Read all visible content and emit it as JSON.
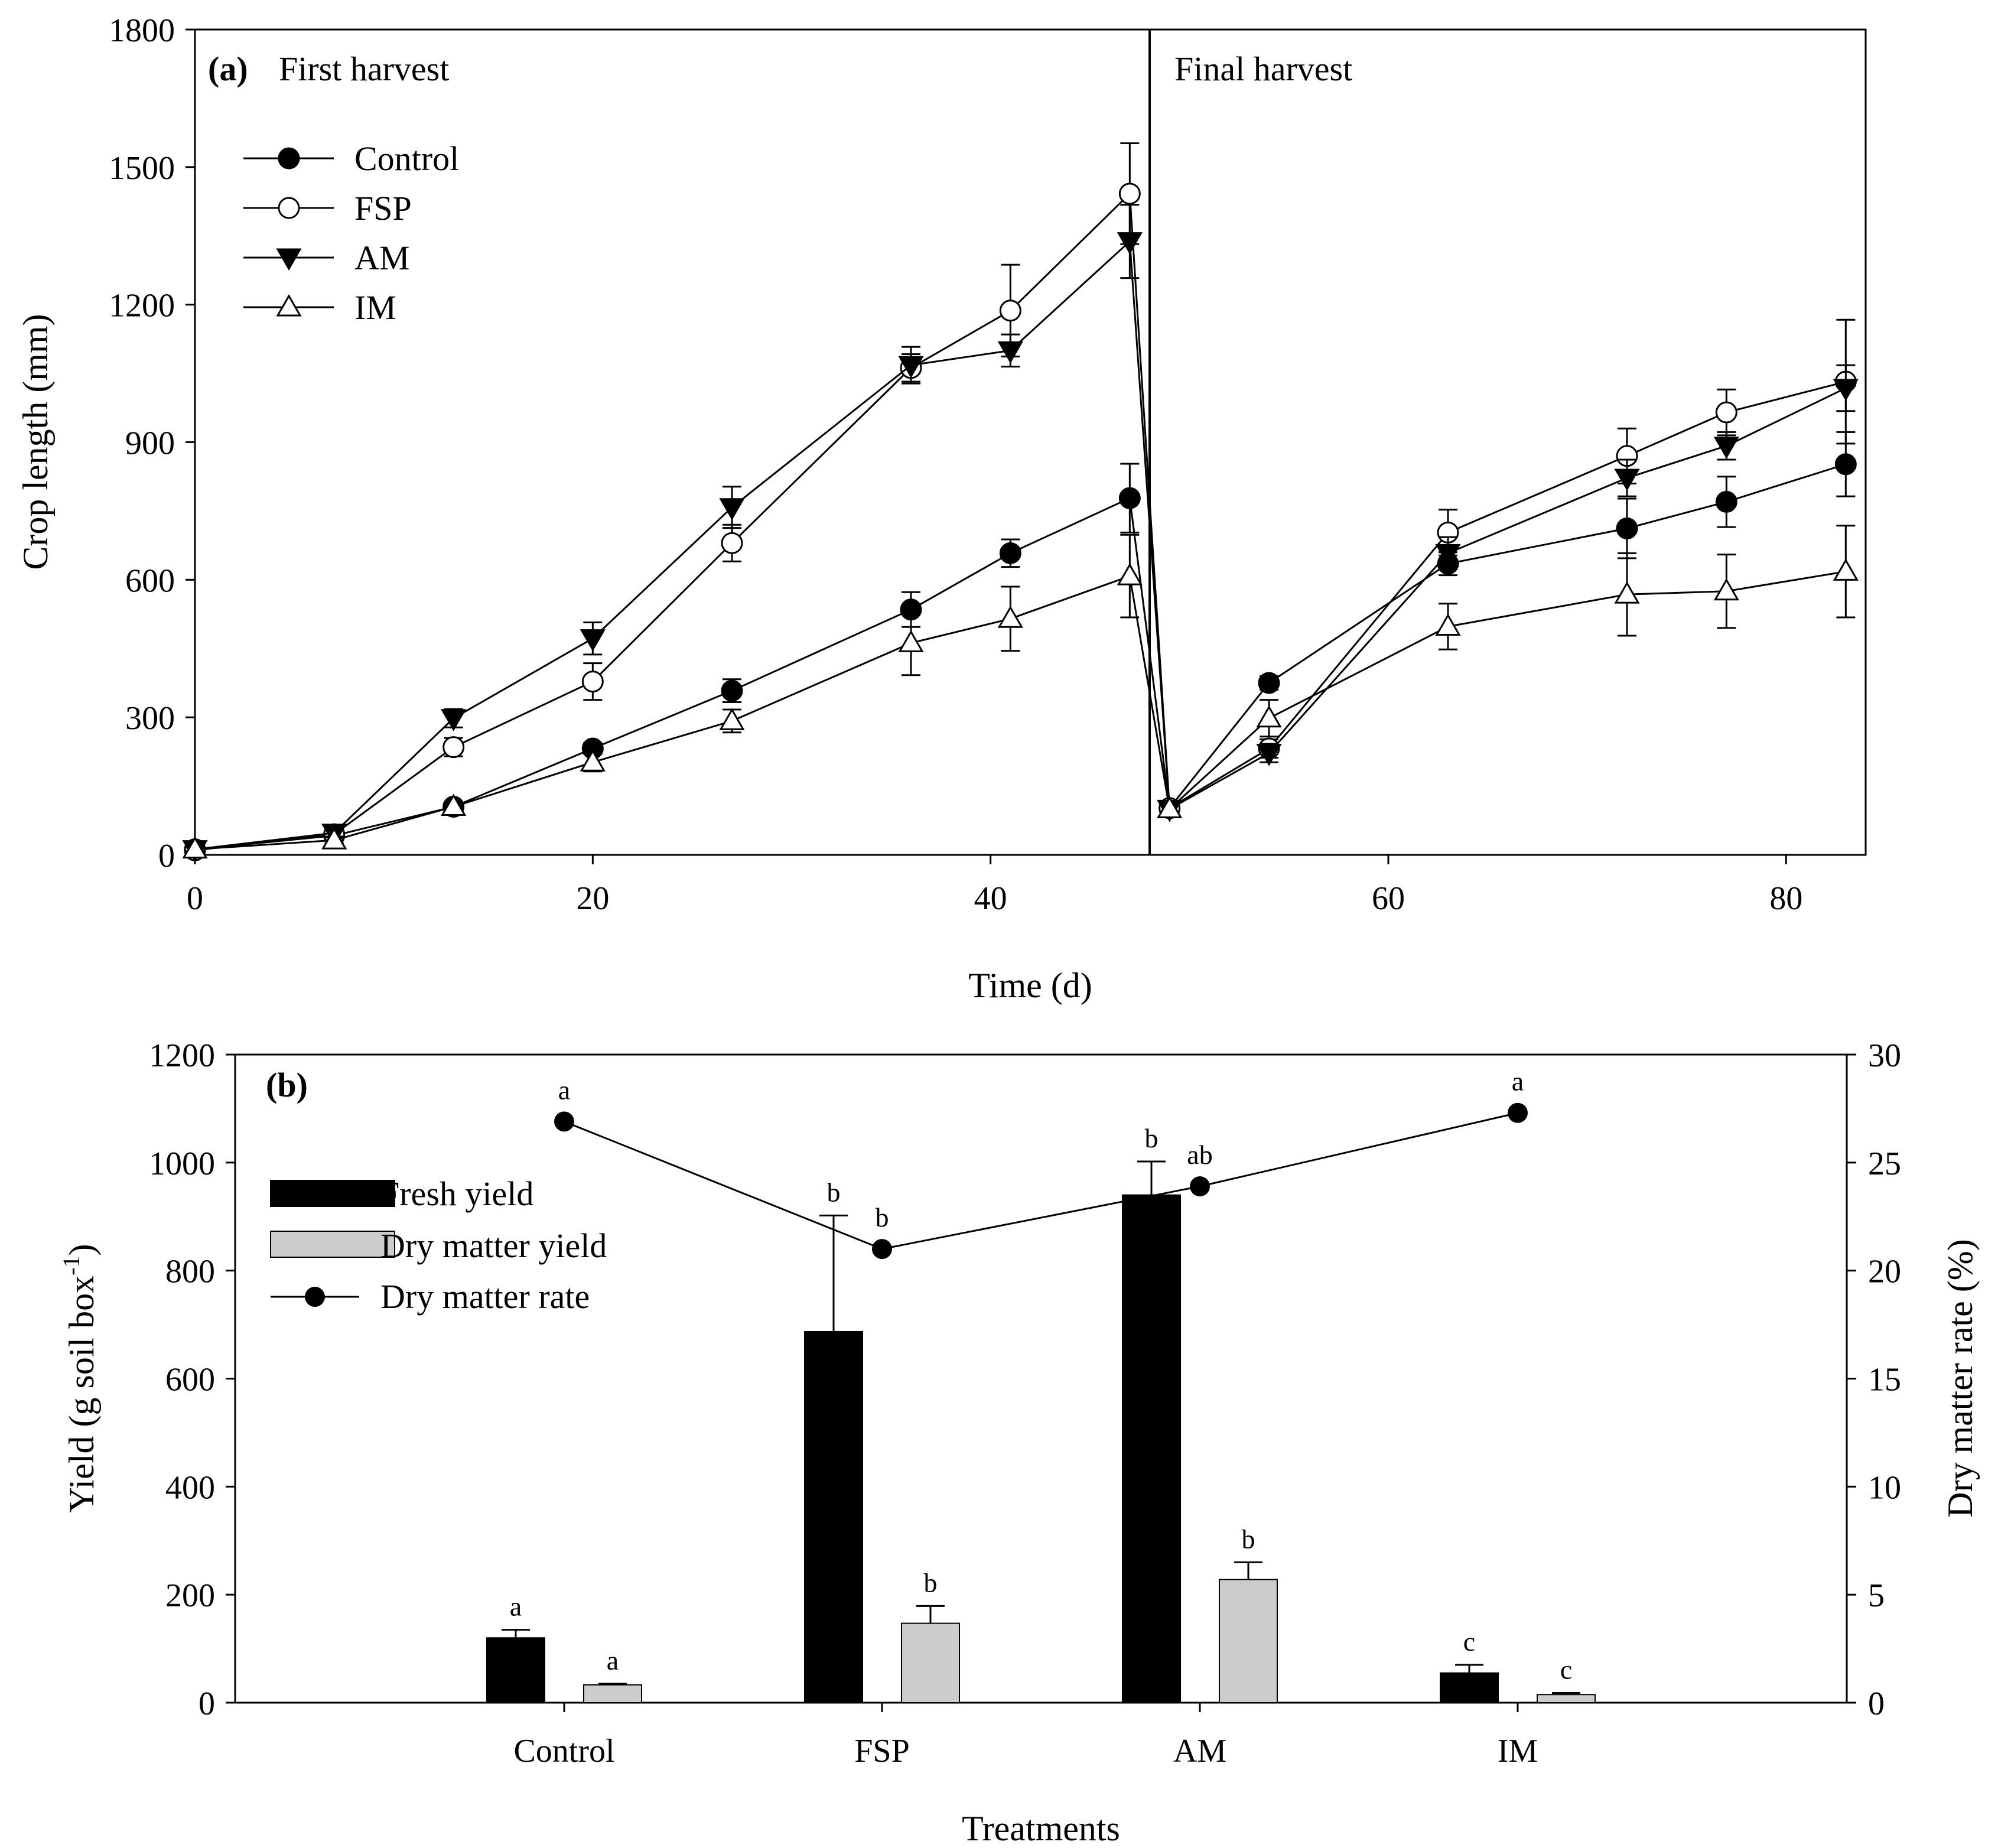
{
  "chart_data": [
    {
      "type": "line",
      "panel_tag": "(a)",
      "section_titles": [
        "First harvest",
        "Final harvest"
      ],
      "xlabel": "Time (d)",
      "ylabel": "Crop length (mm)",
      "xlim": [
        0,
        84
      ],
      "ylim": [
        0,
        1800
      ],
      "xticks": [
        0,
        20,
        40,
        60,
        80
      ],
      "yticks": [
        0,
        300,
        600,
        900,
        1200,
        1500,
        1800
      ],
      "harvest_divider_x": 48,
      "legend_position": "upper-left",
      "series": [
        {
          "name": "Control",
          "marker": "circle-filled",
          "segments": [
            {
              "x": [
                0,
                7,
                13,
                20,
                27,
                36,
                41,
                47
              ],
              "y": [
                12,
                42,
                105,
                232,
                358,
                535,
                658,
                778
              ],
              "err": [
                5,
                8,
                10,
                12,
                25,
                38,
                30,
                75
              ]
            },
            {
              "x": [
                49,
                54,
                63,
                72,
                77,
                83
              ],
              "y": [
                102,
                375,
                635,
                712,
                770,
                852
              ],
              "err": [
                10,
                15,
                25,
                65,
                55,
                70
              ]
            }
          ]
        },
        {
          "name": "FSP",
          "marker": "circle-open",
          "segments": [
            {
              "x": [
                0,
                7,
                13,
                20,
                27,
                36,
                41,
                47
              ],
              "y": [
                10,
                45,
                235,
                378,
                680,
                1062,
                1187,
                1442
              ],
              "err": [
                4,
                8,
                20,
                40,
                40,
                30,
                100,
                110
              ]
            },
            {
              "x": [
                49,
                54,
                63,
                72,
                77,
                83
              ],
              "y": [
                102,
                232,
                703,
                870,
                965,
                1032
              ],
              "err": [
                10,
                20,
                50,
                60,
                50,
                135
              ]
            }
          ]
        },
        {
          "name": "AM",
          "marker": "triangle-down-filled",
          "segments": [
            {
              "x": [
                0,
                7,
                13,
                20,
                27,
                36,
                41,
                47
              ],
              "y": [
                12,
                48,
                298,
                472,
                758,
                1068,
                1100,
                1338
              ],
              "err": [
                4,
                8,
                20,
                35,
                45,
                40,
                35,
                80
              ]
            },
            {
              "x": [
                49,
                54,
                63,
                72,
                77,
                83
              ],
              "y": [
                100,
                222,
                658,
                822,
                892,
                1018
              ],
              "err": [
                8,
                20,
                35,
                40,
                30,
                50
              ]
            }
          ]
        },
        {
          "name": "IM",
          "marker": "triangle-up-open",
          "segments": [
            {
              "x": [
                0,
                7,
                13,
                20,
                27,
                36,
                41,
                47
              ],
              "y": [
                12,
                32,
                105,
                202,
                292,
                462,
                515,
                608
              ],
              "err": [
                4,
                6,
                10,
                20,
                25,
                70,
                70,
                90
              ]
            },
            {
              "x": [
                49,
                54,
                63,
                72,
                77,
                83
              ],
              "y": [
                100,
                298,
                498,
                568,
                575,
                618
              ],
              "err": [
                8,
                40,
                50,
                90,
                80,
                100
              ]
            }
          ]
        }
      ]
    },
    {
      "type": "bar",
      "panel_tag": "(b)",
      "categories": [
        "Control",
        "FSP",
        "AM",
        "IM"
      ],
      "xlabel": "Treatments",
      "ylabel": "Yield (g soil box",
      "ylabel_superscript": "-1",
      "ylabel_close": ")",
      "y2label": "Dry matter rate (%)",
      "ylim": [
        0,
        1200
      ],
      "y2lim": [
        0,
        30
      ],
      "yticks": [
        0,
        200,
        400,
        600,
        800,
        1000,
        1200
      ],
      "y2ticks": [
        0,
        5,
        10,
        15,
        20,
        25,
        30
      ],
      "legend_position": "upper-left",
      "series": [
        {
          "name": "Fresh yield",
          "kind": "bar",
          "color": "#000000",
          "values": [
            120,
            687,
            940,
            55
          ],
          "err": [
            15,
            215,
            62,
            15
          ],
          "sig": [
            "a",
            "b",
            "b",
            "c"
          ]
        },
        {
          "name": "Dry matter yield",
          "kind": "bar",
          "color": "#cccccc",
          "values": [
            33,
            147,
            228,
            15
          ],
          "err": [
            2,
            32,
            32,
            3
          ],
          "sig": [
            "a",
            "b",
            "b",
            "c"
          ]
        },
        {
          "name": "Dry matter rate",
          "kind": "line",
          "axis": "right",
          "values": [
            26.9,
            21.0,
            23.9,
            27.3
          ],
          "sig": [
            "a",
            "b",
            "ab",
            "a"
          ]
        }
      ]
    }
  ]
}
